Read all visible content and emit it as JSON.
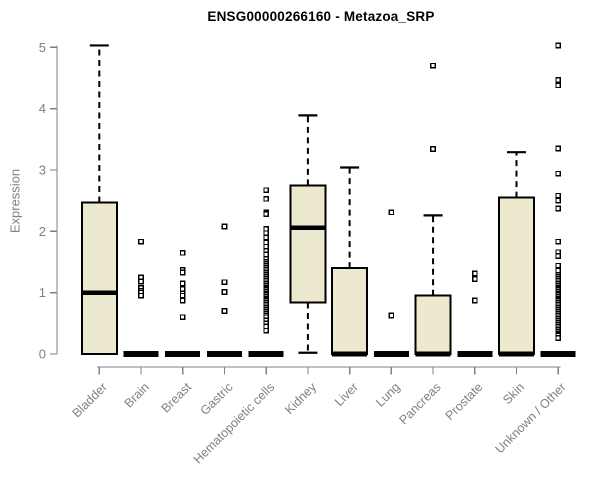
{
  "title": "ENSG00000266160 - Metazoa_SRP",
  "colors": {
    "box_fill": "#EDE9CF",
    "box_stroke": "#000000",
    "median": "#000000",
    "axis": "#808080",
    "tick_label": "#808080",
    "title_text": "#000000",
    "background": "#ffffff"
  },
  "chart_data": {
    "type": "boxplot",
    "title": "ENSG00000266160 - Metazoa_SRP",
    "xlabel": "",
    "ylabel": "Expression",
    "ylim": [
      0,
      5
    ],
    "yticks": [
      0,
      1,
      2,
      3,
      4,
      5
    ],
    "grid": false,
    "legend": false,
    "categories": [
      "Bladder",
      "Brain",
      "Breast",
      "Gastric",
      "Hematopoietic cells",
      "Kidney",
      "Liver",
      "Lung",
      "Pancreas",
      "Prostate",
      "Skin",
      "Unknown / Other"
    ],
    "boxes": [
      {
        "label": "Bladder",
        "whisker_low": 0,
        "q1": 0,
        "median": 1.0,
        "q3": 2.47,
        "whisker_high": 5.03,
        "outliers": []
      },
      {
        "label": "Brain",
        "whisker_low": 0,
        "q1": 0,
        "median": 0,
        "q3": 0,
        "whisker_high": 0,
        "outliers": [
          1.83,
          1.25,
          1.18,
          1.08,
          1.03,
          1.0,
          0.95
        ]
      },
      {
        "label": "Breast",
        "whisker_low": 0,
        "q1": 0,
        "median": 0,
        "q3": 0,
        "whisker_high": 0,
        "outliers": [
          1.65,
          1.37,
          1.33,
          1.15,
          1.06,
          0.99,
          0.95,
          0.87,
          0.6
        ]
      },
      {
        "label": "Gastric",
        "whisker_low": 0,
        "q1": 0,
        "median": 0,
        "q3": 0,
        "whisker_high": 0,
        "outliers": [
          2.08,
          1.17,
          1.01,
          0.7
        ]
      },
      {
        "label": "Hematopoietic cells",
        "whisker_low": 0,
        "q1": 0,
        "median": 0,
        "q3": 0,
        "whisker_high": 0,
        "outliers": [
          2.67,
          2.53,
          2.31,
          2.28,
          2.04,
          1.97,
          1.9,
          1.82,
          1.75,
          1.68,
          1.62,
          1.55,
          1.5,
          1.47,
          1.44,
          1.41,
          1.38,
          1.35,
          1.32,
          1.29,
          1.26,
          1.23,
          1.2,
          1.17,
          1.14,
          1.11,
          1.08,
          1.05,
          1.02,
          0.99,
          0.96,
          0.93,
          0.9,
          0.87,
          0.84,
          0.81,
          0.78,
          0.75,
          0.72,
          0.69,
          0.66,
          0.63,
          0.6,
          0.55,
          0.5,
          0.45,
          0.38
        ]
      },
      {
        "label": "Kidney",
        "whisker_low": 0.02,
        "q1": 0.84,
        "median": 2.06,
        "q3": 2.75,
        "whisker_high": 3.89,
        "outliers": []
      },
      {
        "label": "Liver",
        "whisker_low": 0,
        "q1": 0,
        "median": 0,
        "q3": 1.4,
        "whisker_high": 3.04,
        "outliers": []
      },
      {
        "label": "Lung",
        "whisker_low": 0,
        "q1": 0,
        "median": 0,
        "q3": 0,
        "whisker_high": 0,
        "outliers": [
          2.31,
          0.63
        ]
      },
      {
        "label": "Pancreas",
        "whisker_low": 0,
        "q1": 0,
        "median": 0,
        "q3": 0.95,
        "whisker_high": 2.26,
        "outliers": [
          4.7,
          3.34
        ]
      },
      {
        "label": "Prostate",
        "whisker_low": 0,
        "q1": 0,
        "median": 0,
        "q3": 0,
        "whisker_high": 0,
        "outliers": [
          1.31,
          1.22,
          0.87
        ]
      },
      {
        "label": "Skin",
        "whisker_low": 0,
        "q1": 0,
        "median": 0,
        "q3": 2.55,
        "whisker_high": 3.29,
        "outliers": []
      },
      {
        "label": "Unknown / Other",
        "whisker_low": 0,
        "q1": 0,
        "median": 0,
        "q3": 0,
        "whisker_high": 0,
        "outliers": [
          5.03,
          4.47,
          4.38,
          3.35,
          2.94,
          2.58,
          2.5,
          2.37,
          1.83,
          1.66,
          1.6,
          1.44,
          1.36,
          1.29,
          1.26,
          1.23,
          1.2,
          1.17,
          1.14,
          1.11,
          1.08,
          1.05,
          1.02,
          0.99,
          0.96,
          0.93,
          0.9,
          0.87,
          0.84,
          0.81,
          0.78,
          0.75,
          0.72,
          0.69,
          0.66,
          0.63,
          0.6,
          0.57,
          0.54,
          0.51,
          0.48,
          0.45,
          0.42,
          0.39,
          0.36,
          0.33,
          0.3,
          0.26
        ]
      }
    ]
  }
}
